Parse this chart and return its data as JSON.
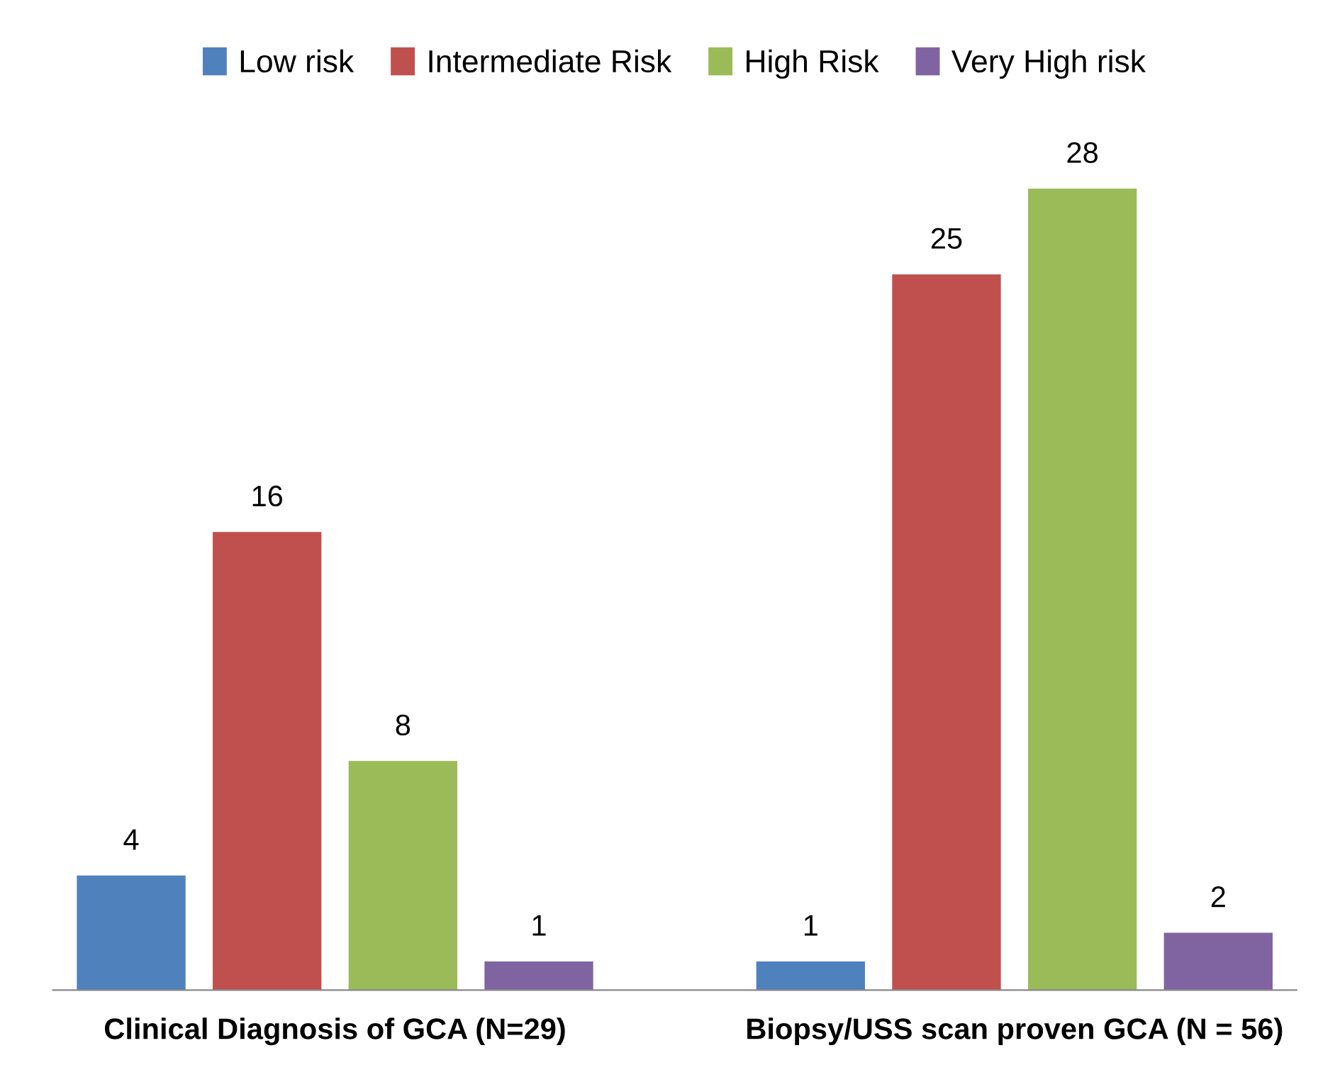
{
  "chart_data": {
    "type": "bar",
    "categories": [
      "Clinical Diagnosis of GCA (N=29)",
      "Biopsy/USS scan proven GCA (N = 56)"
    ],
    "series": [
      {
        "name": "Low risk",
        "color": "#4f81bd",
        "values": [
          4,
          1
        ]
      },
      {
        "name": "Intermediate Risk",
        "color": "#c0504d",
        "values": [
          16,
          25
        ]
      },
      {
        "name": "High Risk",
        "color": "#9bbb59",
        "values": [
          8,
          28
        ]
      },
      {
        "name": "Very High risk",
        "color": "#8064a2",
        "values": [
          1,
          2
        ]
      }
    ],
    "data_labels": true,
    "legend": "top",
    "grid": false
  }
}
